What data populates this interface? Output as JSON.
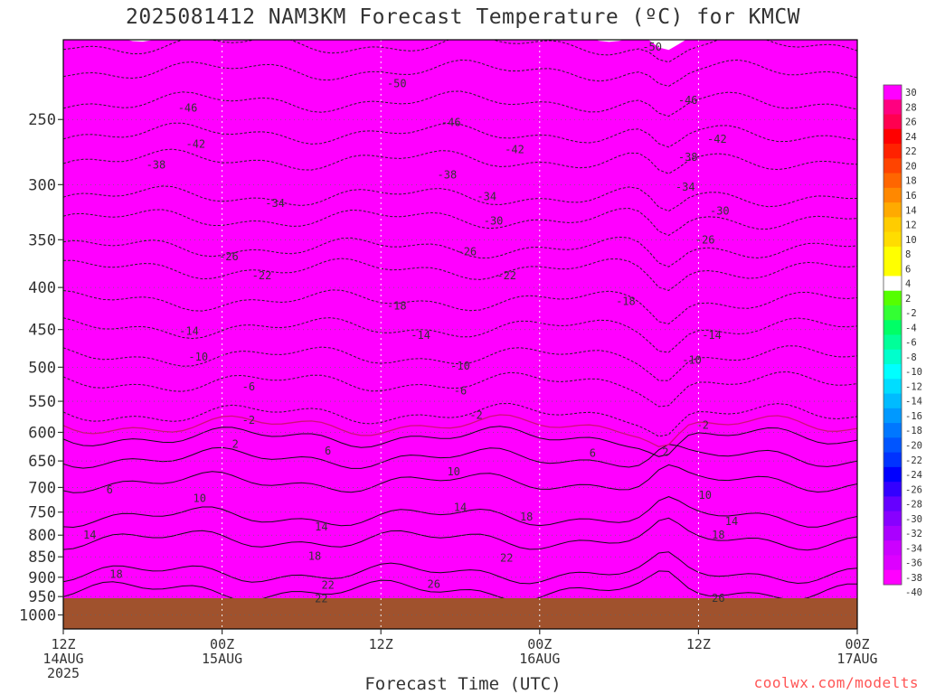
{
  "title": "2025081412 NAM3KM Forecast Temperature (ºC) for KMCW",
  "xlabel": "Forecast Time (UTC)",
  "credit": "coolwx.com/modelts",
  "chart_data": {
    "type": "heatmap",
    "x_ticks": [
      {
        "hour": 0,
        "lines": [
          "12Z",
          "14AUG",
          "2025"
        ]
      },
      {
        "hour": 12,
        "lines": [
          "00Z",
          "15AUG"
        ]
      },
      {
        "hour": 24,
        "lines": [
          "12Z"
        ]
      },
      {
        "hour": 36,
        "lines": [
          "00Z",
          "16AUG"
        ]
      },
      {
        "hour": 48,
        "lines": [
          "12Z"
        ]
      },
      {
        "hour": 60,
        "lines": [
          "00Z",
          "17AUG"
        ]
      }
    ],
    "xlim": [
      0,
      60
    ],
    "y_ticks": [
      250,
      300,
      350,
      400,
      450,
      500,
      550,
      600,
      650,
      700,
      750,
      800,
      850,
      900,
      950,
      1000
    ],
    "ylim_hpa": [
      200,
      1040
    ],
    "y_scale": "log",
    "surface_pressure": 968,
    "colorbar_labels": [
      30,
      28,
      26,
      24,
      22,
      20,
      18,
      16,
      14,
      12,
      10,
      8,
      6,
      4,
      2,
      -2,
      -4,
      -6,
      -8,
      -10,
      -12,
      -14,
      -16,
      -18,
      -20,
      -22,
      -24,
      -26,
      -28,
      -30,
      -32,
      -34,
      -36,
      -38,
      -40
    ],
    "colorbar_colors": [
      "#ff00ff",
      "#ff0080",
      "#ff0050",
      "#ff0000",
      "#ff2200",
      "#ff4400",
      "#ff6600",
      "#ff8800",
      "#ffaa00",
      "#ffcc00",
      "#ffdd00",
      "#ffff00",
      "#ffff00",
      "#ffffff",
      "#55ff00",
      "#33ff33",
      "#00ff66",
      "#00ff99",
      "#00ffcc",
      "#00ffff",
      "#00ddff",
      "#00bbff",
      "#0099ff",
      "#0077ff",
      "#0055ff",
      "#0033ff",
      "#0000ff",
      "#3300ff",
      "#6600ff",
      "#8800ff",
      "#aa00ff",
      "#cc00ff",
      "#dd00ff",
      "#ff00ff"
    ],
    "isotherm_levels": [
      {
        "t": -50,
        "hpa": 218
      },
      {
        "t": -46,
        "hpa": 238
      },
      {
        "t": -42,
        "hpa": 260
      },
      {
        "t": -38,
        "hpa": 280
      },
      {
        "t": -34,
        "hpa": 310
      },
      {
        "t": -30,
        "hpa": 330
      },
      {
        "t": -26,
        "hpa": 358
      },
      {
        "t": -22,
        "hpa": 380
      },
      {
        "t": -18,
        "hpa": 415
      },
      {
        "t": -14,
        "hpa": 448
      },
      {
        "t": -10,
        "hpa": 485
      },
      {
        "t": -6,
        "hpa": 522
      },
      {
        "t": -2,
        "hpa": 570
      },
      {
        "t": 2,
        "hpa": 608
      },
      {
        "t": 6,
        "hpa": 645
      },
      {
        "t": 10,
        "hpa": 690
      },
      {
        "t": 14,
        "hpa": 760
      },
      {
        "t": 18,
        "hpa": 810
      },
      {
        "t": 22,
        "hpa": 890
      },
      {
        "t": 26,
        "hpa": 935
      }
    ],
    "contour_labels": [
      {
        "text": "-50",
        "hour": 25.2,
        "hpa": 226
      },
      {
        "text": "-50",
        "hour": 44.5,
        "hpa": 204
      },
      {
        "text": "-46",
        "hour": 9.4,
        "hpa": 242
      },
      {
        "text": "-46",
        "hour": 29.3,
        "hpa": 252
      },
      {
        "text": "-46",
        "hour": 47.2,
        "hpa": 237
      },
      {
        "text": "-42",
        "hour": 10.0,
        "hpa": 268
      },
      {
        "text": "-42",
        "hour": 34.1,
        "hpa": 272
      },
      {
        "text": "-42",
        "hour": 49.4,
        "hpa": 264
      },
      {
        "text": "-38",
        "hour": 7.0,
        "hpa": 284
      },
      {
        "text": "-38",
        "hour": 29.0,
        "hpa": 292
      },
      {
        "text": "-38",
        "hour": 47.2,
        "hpa": 278
      },
      {
        "text": "-34",
        "hour": 16.0,
        "hpa": 316
      },
      {
        "text": "-34",
        "hour": 32.0,
        "hpa": 310
      },
      {
        "text": "-34",
        "hour": 47.0,
        "hpa": 302
      },
      {
        "text": "-30",
        "hour": 32.5,
        "hpa": 332
      },
      {
        "text": "-30",
        "hour": 49.6,
        "hpa": 323
      },
      {
        "text": "-26",
        "hour": 12.5,
        "hpa": 367
      },
      {
        "text": "-26",
        "hour": 30.5,
        "hpa": 362
      },
      {
        "text": "-26",
        "hour": 48.5,
        "hpa": 350
      },
      {
        "text": "-22",
        "hour": 15.0,
        "hpa": 387
      },
      {
        "text": "-22",
        "hour": 33.5,
        "hpa": 387
      },
      {
        "text": "-18",
        "hour": 25.2,
        "hpa": 421
      },
      {
        "text": "-18",
        "hour": 42.5,
        "hpa": 416
      },
      {
        "text": "-14",
        "hour": 9.5,
        "hpa": 452
      },
      {
        "text": "-14",
        "hour": 27.0,
        "hpa": 457
      },
      {
        "text": "-14",
        "hour": 49.0,
        "hpa": 457
      },
      {
        "text": "-10",
        "hour": 10.2,
        "hpa": 486
      },
      {
        "text": "-10",
        "hour": 30.0,
        "hpa": 498
      },
      {
        "text": "-10",
        "hour": 47.5,
        "hpa": 490
      },
      {
        "text": "-6",
        "hour": 14.0,
        "hpa": 528
      },
      {
        "text": "-6",
        "hour": 30.0,
        "hpa": 534
      },
      {
        "text": "-2",
        "hour": 14.0,
        "hpa": 580
      },
      {
        "text": "-2",
        "hour": 31.2,
        "hpa": 572
      },
      {
        "text": "-2",
        "hour": 48.3,
        "hpa": 588
      },
      {
        "text": "2",
        "hour": 13.0,
        "hpa": 620
      },
      {
        "text": "2",
        "hour": 45.5,
        "hpa": 634
      },
      {
        "text": "6",
        "hour": 20.0,
        "hpa": 632
      },
      {
        "text": "6",
        "hour": 40.0,
        "hpa": 636
      },
      {
        "text": "6",
        "hour": 3.5,
        "hpa": 705
      },
      {
        "text": "10",
        "hour": 29.5,
        "hpa": 670
      },
      {
        "text": "10",
        "hour": 10.3,
        "hpa": 722
      },
      {
        "text": "10",
        "hour": 48.5,
        "hpa": 715
      },
      {
        "text": "14",
        "hour": 30.0,
        "hpa": 740
      },
      {
        "text": "14",
        "hour": 2.0,
        "hpa": 800
      },
      {
        "text": "14",
        "hour": 19.5,
        "hpa": 782
      },
      {
        "text": "14",
        "hour": 50.5,
        "hpa": 770
      },
      {
        "text": "18",
        "hour": 35.0,
        "hpa": 760
      },
      {
        "text": "18",
        "hour": 49.5,
        "hpa": 800
      },
      {
        "text": "18",
        "hour": 19.0,
        "hpa": 848
      },
      {
        "text": "18",
        "hour": 4.0,
        "hpa": 892
      },
      {
        "text": "22",
        "hour": 33.5,
        "hpa": 853
      },
      {
        "text": "22",
        "hour": 20.0,
        "hpa": 920
      },
      {
        "text": "22",
        "hour": 19.5,
        "hpa": 956
      },
      {
        "text": "26",
        "hour": 28.0,
        "hpa": 918
      },
      {
        "text": "26",
        "hour": 49.5,
        "hpa": 954
      }
    ]
  }
}
